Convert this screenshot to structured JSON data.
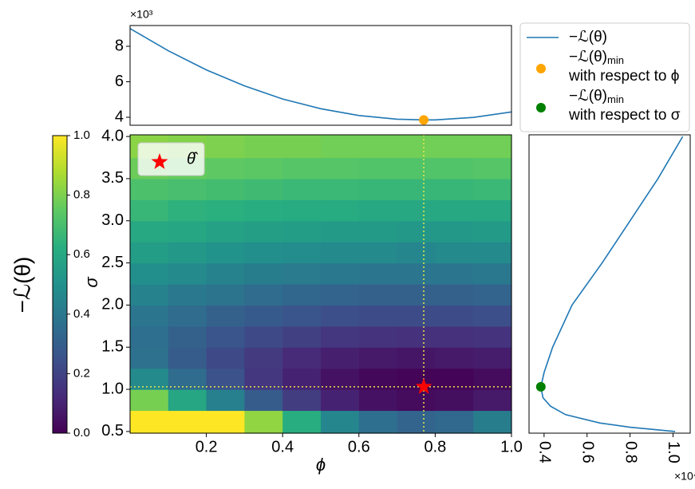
{
  "chart_data": [
    {
      "type": "line",
      "offset_label": "×10³",
      "xlim": [
        0,
        1
      ],
      "ylim": [
        3.55,
        9.17
      ],
      "yticks": [
        4,
        6,
        8
      ],
      "x": [
        0,
        0.1,
        0.2,
        0.3,
        0.4,
        0.5,
        0.6,
        0.7,
        0.77,
        0.8,
        0.9,
        1.0
      ],
      "series": [
        {
          "name": "−ℒ(θ)",
          "color": "#1f77b4",
          "values": [
            9.0,
            7.75,
            6.67,
            5.77,
            5.03,
            4.48,
            4.1,
            3.89,
            3.85,
            3.85,
            3.99,
            4.3
          ]
        }
      ],
      "points": [
        {
          "name": "−ℒ(θ)",
          "subscript": "min",
          "note": "with respect to ϕ",
          "color": "orange",
          "x": 0.77,
          "y": 3.85
        }
      ]
    },
    {
      "type": "heatmap",
      "xlabel": "ϕ",
      "ylabel": "σ",
      "xlim": [
        0,
        1
      ],
      "ylim": [
        0.48,
        4.02
      ],
      "xticks": [
        0.2,
        0.4,
        0.6,
        0.8,
        {
          "value": 1,
          "label": "1.0"
        }
      ],
      "yticks": [
        0.5,
        {
          "value": 1,
          "label": "1.0"
        },
        1.5,
        {
          "value": 2,
          "label": "2.0"
        },
        2.5,
        {
          "value": 3,
          "label": "3.0"
        },
        3.5,
        {
          "value": 4,
          "label": "4.0"
        }
      ],
      "colormap": "viridis",
      "clim": [
        0,
        1
      ],
      "crosshair_color": "#e8e84a",
      "x": [
        0.05,
        0.15,
        0.25,
        0.35,
        0.45,
        0.55,
        0.65,
        0.75,
        0.85,
        0.95
      ],
      "y": [
        0.625,
        0.875,
        1.125,
        1.375,
        1.625,
        1.875,
        2.125,
        2.375,
        2.625,
        2.875,
        3.125,
        3.375,
        3.625,
        3.875
      ],
      "z": [
        [
          1,
          1,
          1,
          0.83,
          0.62,
          0.46,
          0.36,
          0.32,
          0.34,
          0.42
        ],
        [
          0.79,
          0.59,
          0.43,
          0.29,
          0.18,
          0.1,
          0.05,
          0.03,
          0.04,
          0.07
        ],
        [
          0.47,
          0.35,
          0.25,
          0.16,
          0.1,
          0.05,
          0.02,
          0.01,
          0.01,
          0.03
        ],
        [
          0.37,
          0.29,
          0.22,
          0.17,
          0.12,
          0.09,
          0.07,
          0.06,
          0.07,
          0.08
        ],
        [
          0.36,
          0.31,
          0.26,
          0.22,
          0.19,
          0.16,
          0.15,
          0.14,
          0.14,
          0.15
        ],
        [
          0.39,
          0.35,
          0.31,
          0.28,
          0.26,
          0.24,
          0.23,
          0.23,
          0.23,
          0.24
        ],
        [
          0.44,
          0.4,
          0.38,
          0.35,
          0.33,
          0.32,
          0.31,
          0.31,
          0.31,
          0.32
        ],
        [
          0.49,
          0.47,
          0.44,
          0.42,
          0.41,
          0.4,
          0.39,
          0.39,
          0.39,
          0.4
        ],
        [
          0.55,
          0.53,
          0.51,
          0.49,
          0.48,
          0.47,
          0.47,
          0.46,
          0.47,
          0.47
        ],
        [
          0.6,
          0.59,
          0.57,
          0.56,
          0.55,
          0.54,
          0.54,
          0.53,
          0.53,
          0.54
        ],
        [
          0.66,
          0.64,
          0.63,
          0.62,
          0.61,
          0.61,
          0.6,
          0.6,
          0.6,
          0.6
        ],
        [
          0.71,
          0.7,
          0.69,
          0.68,
          0.67,
          0.67,
          0.66,
          0.66,
          0.66,
          0.67
        ],
        [
          0.77,
          0.76,
          0.75,
          0.74,
          0.73,
          0.73,
          0.72,
          0.72,
          0.72,
          0.73
        ],
        [
          0.82,
          0.81,
          0.8,
          0.79,
          0.79,
          0.78,
          0.78,
          0.78,
          0.78,
          0.78
        ]
      ],
      "markers": [
        {
          "label": "θ̂",
          "x": 0.77,
          "y": 1.03,
          "color": "red"
        }
      ]
    },
    {
      "type": "line",
      "orientation": "vertical",
      "offset_label": "×10⁴",
      "xlim": [
        0.33,
        1.08
      ],
      "xticks": [
        0.4,
        0.6,
        0.8,
        {
          "value": 1,
          "label": "1.0"
        }
      ],
      "ylim": [
        0.48,
        4.02
      ],
      "y": [
        0.5,
        0.55,
        0.6,
        0.7,
        0.8,
        0.9,
        1.03,
        1.2,
        1.5,
        2.0,
        2.5,
        3.0,
        3.5,
        4.0
      ],
      "series": [
        {
          "color": "#1f77b4",
          "values": [
            1.01,
            0.8,
            0.66,
            0.5,
            0.43,
            0.395,
            0.385,
            0.4,
            0.44,
            0.53,
            0.67,
            0.8,
            0.93,
            1.045
          ]
        }
      ],
      "points": [
        {
          "name": "−ℒ(θ)",
          "subscript": "min",
          "note": "with respect to σ",
          "color": "green",
          "x": 0.385,
          "y": 1.03
        }
      ]
    },
    {
      "type": "colorbar",
      "label": "−ℒ(θ)",
      "colormap": "viridis",
      "ylim": [
        0,
        1
      ],
      "yticks": [
        {
          "value": 0,
          "label": "0.0"
        },
        0.2,
        0.4,
        0.6,
        0.8,
        {
          "value": 1,
          "label": "1.0"
        }
      ]
    }
  ]
}
